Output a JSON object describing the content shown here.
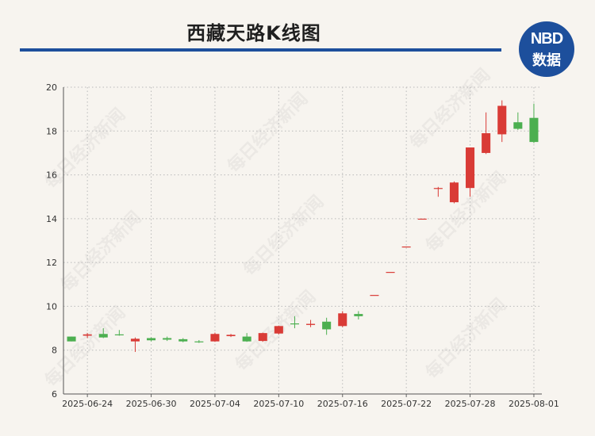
{
  "title": "西藏天路K线图",
  "logo": {
    "top": "NBD",
    "bottom": "数据"
  },
  "watermark": "每日经济新闻",
  "colors": {
    "up": "#d93b36",
    "down": "#4caf50",
    "rule": "#1d4f9c",
    "grid": "#b9b9b9"
  },
  "chart_data": {
    "type": "candlestick",
    "title": "西藏天路K线图",
    "ylim": [
      6,
      20
    ],
    "yticks": [
      6,
      8,
      10,
      12,
      14,
      16,
      18,
      20
    ],
    "x_tick_labels": [
      "2025-06-24",
      "2025-06-30",
      "2025-07-04",
      "2025-07-10",
      "2025-07-16",
      "2025-07-22",
      "2025-07-28",
      "2025-08-01"
    ],
    "grid": true,
    "candles": [
      {
        "date": "2025-06-23",
        "open": 8.62,
        "close": 8.4,
        "high": 8.62,
        "low": 8.4
      },
      {
        "date": "2025-06-24",
        "open": 8.66,
        "close": 8.72,
        "high": 8.78,
        "low": 8.55
      },
      {
        "date": "2025-06-25",
        "open": 8.74,
        "close": 8.58,
        "high": 9.0,
        "low": 8.55
      },
      {
        "date": "2025-06-26",
        "open": 8.72,
        "close": 8.68,
        "high": 8.92,
        "low": 8.66
      },
      {
        "date": "2025-06-27",
        "open": 8.4,
        "close": 8.52,
        "high": 8.58,
        "low": 7.92
      },
      {
        "date": "2025-06-30",
        "open": 8.55,
        "close": 8.45,
        "high": 8.58,
        "low": 8.4
      },
      {
        "date": "2025-07-01",
        "open": 8.55,
        "close": 8.48,
        "high": 8.62,
        "low": 8.42
      },
      {
        "date": "2025-07-02",
        "open": 8.5,
        "close": 8.4,
        "high": 8.55,
        "low": 8.36
      },
      {
        "date": "2025-07-03",
        "open": 8.4,
        "close": 8.38,
        "high": 8.46,
        "low": 8.33
      },
      {
        "date": "2025-07-04",
        "open": 8.4,
        "close": 8.74,
        "high": 8.8,
        "low": 8.38
      },
      {
        "date": "2025-07-07",
        "open": 8.64,
        "close": 8.7,
        "high": 8.74,
        "low": 8.6
      },
      {
        "date": "2025-07-08",
        "open": 8.62,
        "close": 8.4,
        "high": 8.78,
        "low": 8.38
      },
      {
        "date": "2025-07-09",
        "open": 8.42,
        "close": 8.78,
        "high": 8.8,
        "low": 8.38
      },
      {
        "date": "2025-07-10",
        "open": 8.76,
        "close": 9.1,
        "high": 9.12,
        "low": 8.72
      },
      {
        "date": "2025-07-11",
        "open": 9.22,
        "close": 9.18,
        "high": 9.55,
        "low": 9.0
      },
      {
        "date": "2025-07-14",
        "open": 9.15,
        "close": 9.2,
        "high": 9.38,
        "low": 9.05
      },
      {
        "date": "2025-07-15",
        "open": 9.3,
        "close": 8.95,
        "high": 9.48,
        "low": 8.7
      },
      {
        "date": "2025-07-16",
        "open": 9.1,
        "close": 9.68,
        "high": 9.78,
        "low": 9.05
      },
      {
        "date": "2025-07-17",
        "open": 9.65,
        "close": 9.55,
        "high": 9.78,
        "low": 9.4
      },
      {
        "date": "2025-07-18",
        "open": 10.52,
        "close": 10.52,
        "high": 10.52,
        "low": 10.52
      },
      {
        "date": "2025-07-21",
        "open": 11.57,
        "close": 11.57,
        "high": 11.57,
        "low": 11.57
      },
      {
        "date": "2025-07-22",
        "open": 12.73,
        "close": 12.73,
        "high": 12.73,
        "low": 12.73
      },
      {
        "date": "2025-07-23",
        "open": 14.0,
        "close": 14.0,
        "high": 14.0,
        "low": 14.0
      },
      {
        "date": "2025-07-24",
        "open": 15.4,
        "close": 15.4,
        "high": 15.45,
        "low": 15.0
      },
      {
        "date": "2025-07-25",
        "open": 14.75,
        "close": 15.65,
        "high": 15.7,
        "low": 14.7
      },
      {
        "date": "2025-07-28",
        "open": 15.4,
        "close": 17.25,
        "high": 17.25,
        "low": 15.0
      },
      {
        "date": "2025-07-29",
        "open": 17.0,
        "close": 17.9,
        "high": 18.85,
        "low": 16.95
      },
      {
        "date": "2025-07-30",
        "open": 17.85,
        "close": 19.15,
        "high": 19.4,
        "low": 17.5
      },
      {
        "date": "2025-07-31",
        "open": 18.4,
        "close": 18.1,
        "high": 18.85,
        "low": 18.05
      },
      {
        "date": "2025-08-01",
        "open": 18.6,
        "close": 17.5,
        "high": 19.25,
        "low": 17.45
      }
    ]
  }
}
